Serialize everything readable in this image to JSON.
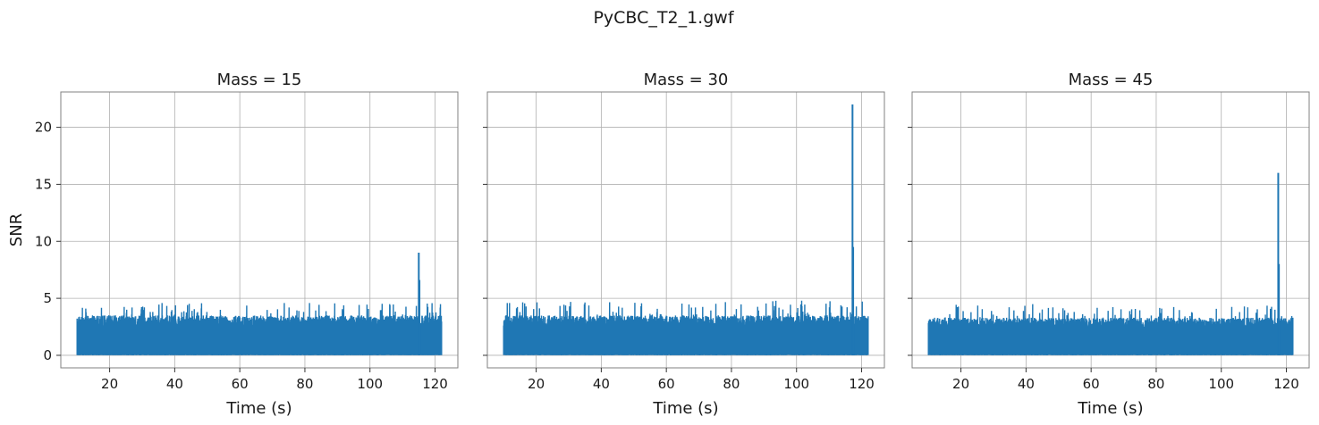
{
  "title": "PyCBC_T2_1.gwf",
  "line_color": "#1f77b4",
  "chart_data": [
    {
      "type": "line",
      "title": "Mass = 15",
      "xlabel": "Time (s)",
      "ylabel": "SNR",
      "xlim": [
        5,
        127
      ],
      "ylim": [
        -1.1,
        23.1
      ],
      "xticks": [
        20,
        40,
        60,
        80,
        100,
        120
      ],
      "yticks": [
        0,
        5,
        10,
        15,
        20
      ],
      "grid": true,
      "series": [
        {
          "x_range": [
            10,
            122
          ],
          "noise_floor_max": 3.5,
          "noise_envelope_max": 4.6,
          "peaks": [
            {
              "x": 115,
              "y": 9.0
            },
            {
              "x": 115.2,
              "y": 6.6
            }
          ]
        }
      ]
    },
    {
      "type": "line",
      "title": "Mass = 30",
      "xlabel": "Time (s)",
      "ylabel": "",
      "xlim": [
        5,
        127
      ],
      "ylim": [
        -1.1,
        23.1
      ],
      "xticks": [
        20,
        40,
        60,
        80,
        100,
        120
      ],
      "yticks": [
        0,
        5,
        10,
        15,
        20
      ],
      "grid": true,
      "series": [
        {
          "x_range": [
            10,
            122
          ],
          "noise_floor_max": 3.5,
          "noise_envelope_max": 4.8,
          "peaks": [
            {
              "x": 117.2,
              "y": 22.0
            },
            {
              "x": 117.4,
              "y": 9.5
            }
          ]
        }
      ]
    },
    {
      "type": "line",
      "title": "Mass = 45",
      "xlabel": "Time (s)",
      "ylabel": "",
      "xlim": [
        5,
        127
      ],
      "ylim": [
        -1.1,
        23.1
      ],
      "xticks": [
        20,
        40,
        60,
        80,
        100,
        120
      ],
      "yticks": [
        0,
        5,
        10,
        15,
        20
      ],
      "grid": true,
      "series": [
        {
          "x_range": [
            10,
            122
          ],
          "noise_floor_max": 3.3,
          "noise_envelope_max": 4.5,
          "peaks": [
            {
              "x": 117.5,
              "y": 16.0
            },
            {
              "x": 117.7,
              "y": 8.0
            }
          ]
        }
      ]
    }
  ]
}
